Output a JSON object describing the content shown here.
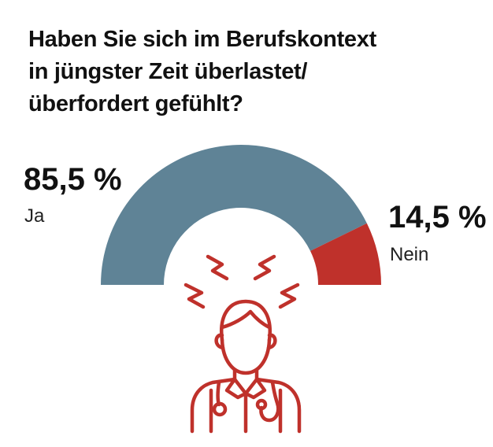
{
  "title_lines": [
    "Haben Sie sich im Berufskontext",
    "in jüngster Zeit überlastet/",
    "überfordert gefühlt?"
  ],
  "chart_data": {
    "type": "pie",
    "title": "Haben Sie sich im Berufskontext in jüngster Zeit überlastet/überfordert gefühlt?",
    "categories": [
      "Ja",
      "Nein"
    ],
    "values": [
      85.5,
      14.5
    ],
    "value_labels": [
      "85,5 %",
      "14,5 %"
    ],
    "colors": [
      "#5f8396",
      "#bf312b"
    ],
    "shape": "half-donut"
  },
  "colors": {
    "ja": "#5f8396",
    "nein": "#bf312b",
    "icon": "#bf312b",
    "text": "#111111"
  },
  "icon": "stressed-doctor-icon"
}
